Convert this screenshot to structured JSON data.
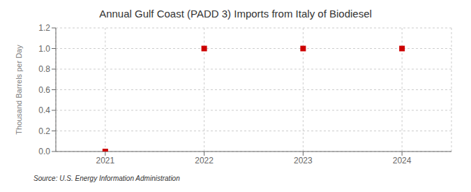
{
  "chart_data": {
    "type": "scatter",
    "title": "Annual Gulf Coast (PADD 3) Imports from Italy of Biodiesel",
    "ylabel": "Thousand Barrels per Day",
    "annotations": [
      "Source: U.S. Energy Information Administration"
    ],
    "x": [
      2021,
      2022,
      2023,
      2024
    ],
    "values": [
      0.0,
      1.0,
      1.0,
      1.0
    ],
    "color": "#cc0000",
    "marker": "square",
    "xlim": [
      2020.5,
      2024.5
    ],
    "ylim": [
      0,
      1.2
    ],
    "xticks": [
      2021,
      2022,
      2023,
      2024
    ],
    "yticks": [
      {
        "value": 0,
        "label": "0.0"
      },
      0.2,
      0.4,
      0.6,
      0.8,
      {
        "value": 1,
        "label": "1.0"
      },
      1.2
    ],
    "grid": true
  }
}
